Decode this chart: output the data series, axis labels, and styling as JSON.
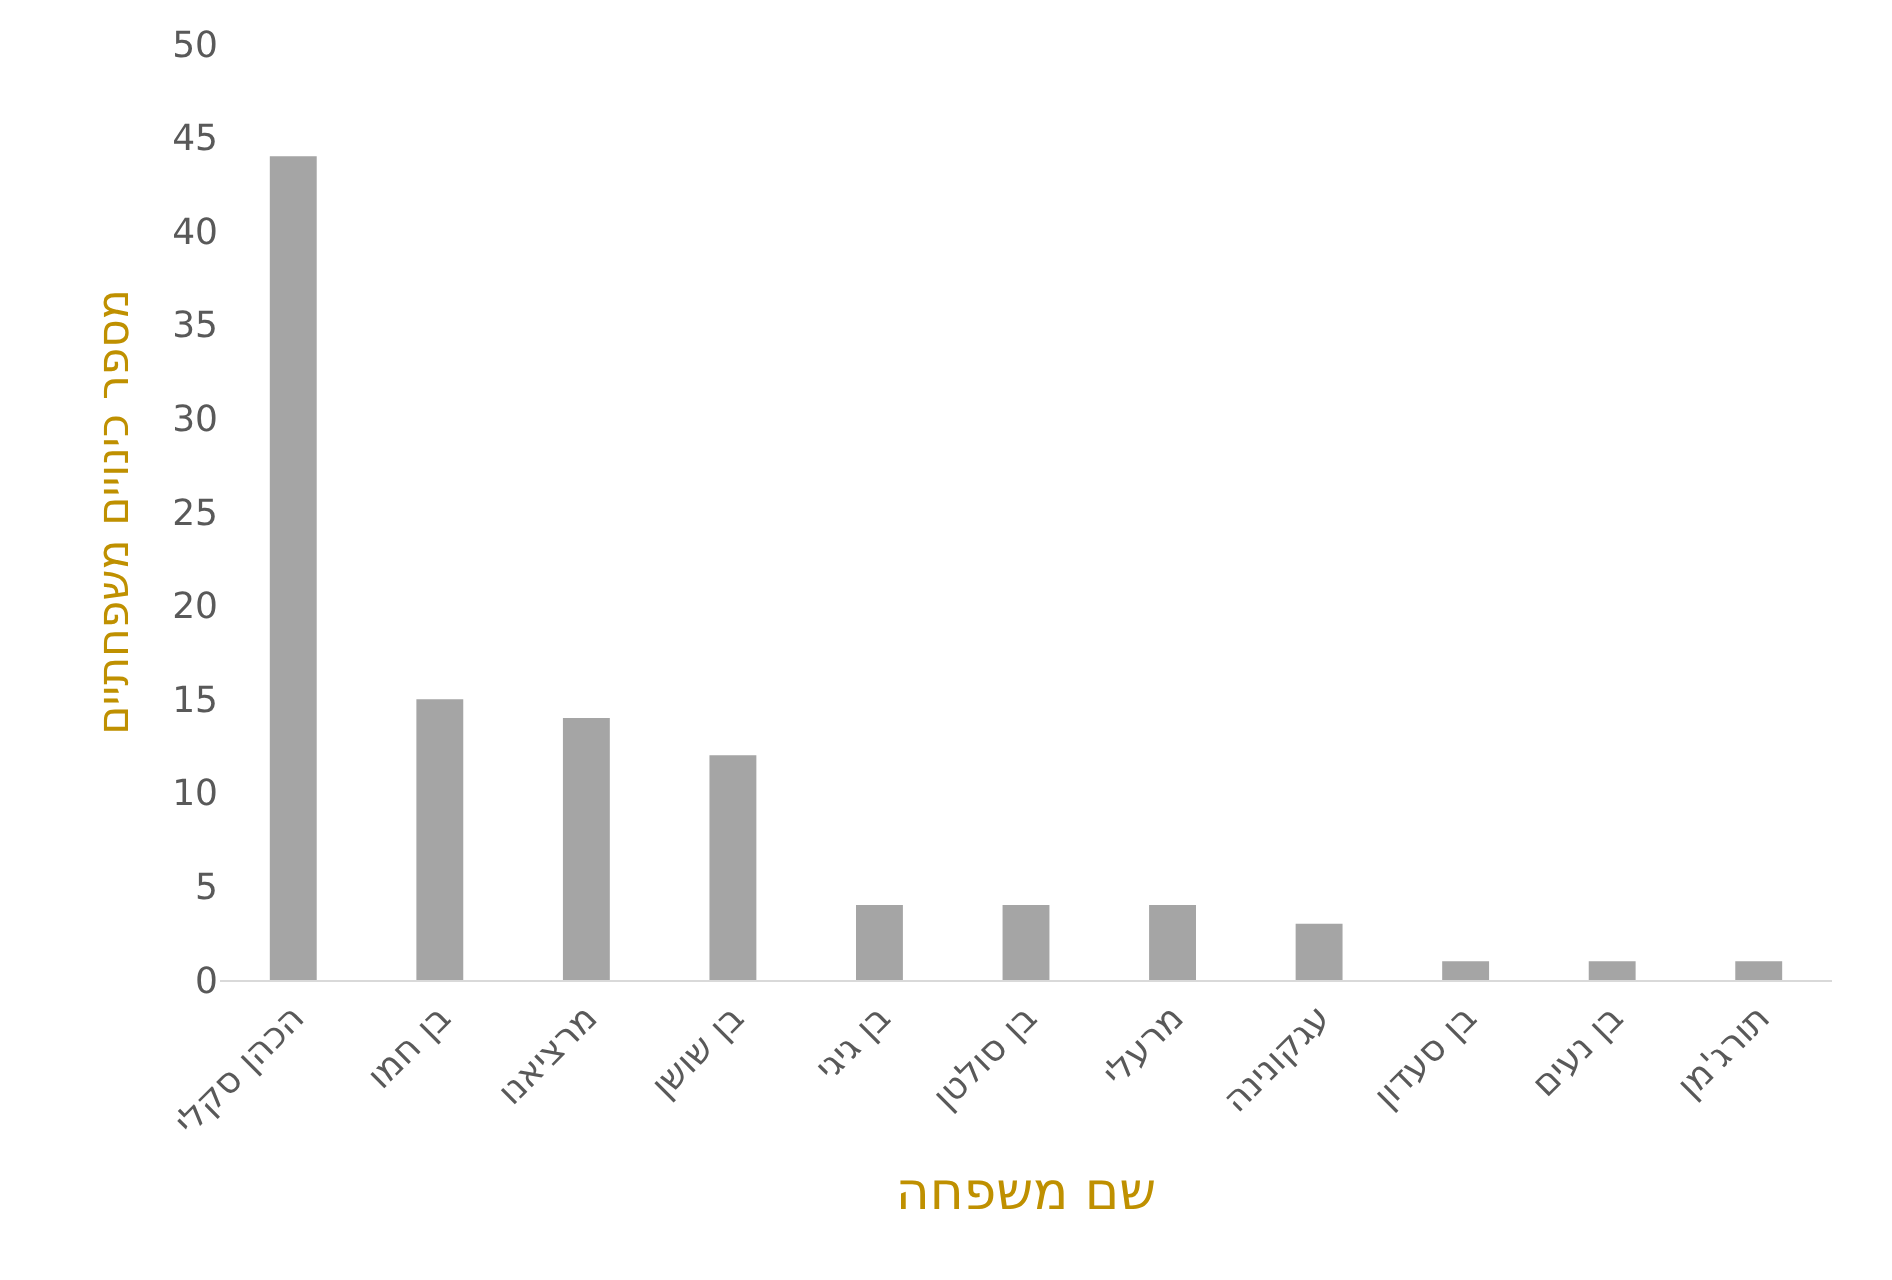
{
  "chart_data": {
    "type": "bar",
    "xlabel": "שם משפחה",
    "ylabel": "מספר כינויים משפחתיים",
    "categories": [
      "הכהן סקלי",
      "בן חמו",
      "מרציאנו",
      "בן שושן",
      "בן גיגי",
      "בן סולטן",
      "מרעלי",
      "עגקונינה",
      "בן סעדון",
      "בן נעים",
      "תורג'מן"
    ],
    "values": [
      44,
      15,
      14,
      12,
      4,
      4,
      4,
      3,
      1,
      1,
      1
    ],
    "color": "#a5a5a5",
    "ylim": [
      0,
      50
    ],
    "yticks": [
      0,
      5,
      10,
      15,
      20,
      25,
      30,
      35,
      40,
      45,
      50
    ]
  }
}
